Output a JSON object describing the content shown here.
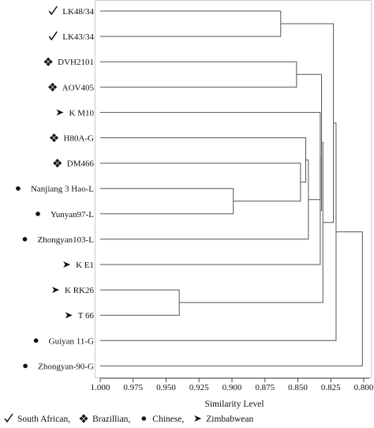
{
  "chart_data": {
    "type": "dendrogram",
    "xlabel": "Similarity Level",
    "xlim": [
      1.0,
      0.8
    ],
    "x_direction": "reversed",
    "ticks": [
      "1.000",
      "0.975",
      "0.950",
      "0.925",
      "0.900",
      "0.875",
      "0.850",
      "0.825",
      "0.800"
    ],
    "leaves": [
      {
        "label": "LK48/34",
        "origin": "South African"
      },
      {
        "label": "LK43/34",
        "origin": "South African"
      },
      {
        "label": "DVH2101",
        "origin": "Brazillian"
      },
      {
        "label": "AOV405",
        "origin": "Brazillian"
      },
      {
        "label": "K M10",
        "origin": "Zimbabwean"
      },
      {
        "label": "H80A-G",
        "origin": "Brazillian"
      },
      {
        "label": "DM466",
        "origin": "Brazillian"
      },
      {
        "label": "Nanjiang 3 Hao-L",
        "origin": "Chinese"
      },
      {
        "label": "Yunyan97-L",
        "origin": "Chinese"
      },
      {
        "label": "Zhongyan103-L",
        "origin": "Chinese"
      },
      {
        "label": "K E1",
        "origin": "Zimbabwean"
      },
      {
        "label": "K RK26",
        "origin": "Zimbabwean"
      },
      {
        "label": "T 66",
        "origin": "Zimbabwean"
      },
      {
        "label": "Guiyan 11-G",
        "origin": "Chinese"
      },
      {
        "label": "Zhongyan-90-G",
        "origin": "Chinese"
      }
    ],
    "merges": [
      {
        "id": "m1",
        "a": "L0",
        "b": "L1",
        "similarity": 0.863
      },
      {
        "id": "m2",
        "a": "L2",
        "b": "L3",
        "similarity": 0.851
      },
      {
        "id": "m3",
        "a": "L7",
        "b": "L8",
        "similarity": 0.899
      },
      {
        "id": "m4",
        "a": "L6",
        "b": "m3",
        "similarity": 0.848
      },
      {
        "id": "m5",
        "a": "L5",
        "b": "m4",
        "similarity": 0.844
      },
      {
        "id": "m6",
        "a": "m5",
        "b": "L9",
        "similarity": 0.842
      },
      {
        "id": "m7",
        "a": "L4",
        "b": "m6",
        "similarity": 0.833
      },
      {
        "id": "m8",
        "a": "m7",
        "b": "L10",
        "similarity": 0.833
      },
      {
        "id": "m9",
        "a": "m2",
        "b": "m8",
        "similarity": 0.832
      },
      {
        "id": "m10",
        "a": "L11",
        "b": "L12",
        "similarity": 0.94
      },
      {
        "id": "m11",
        "a": "m9",
        "b": "m10",
        "similarity": 0.831
      },
      {
        "id": "m12",
        "a": "m1",
        "b": "m11",
        "similarity": 0.823
      },
      {
        "id": "m13",
        "a": "m12",
        "b": "L13",
        "similarity": 0.821
      },
      {
        "id": "m14",
        "a": "m13",
        "b": "L14",
        "similarity": 0.801
      }
    ],
    "legend": {
      "placement": "bottom",
      "items": [
        {
          "symbol": "check",
          "label": "South African,"
        },
        {
          "symbol": "diamond-dots",
          "label": "Brazillian,"
        },
        {
          "symbol": "dot",
          "label": "Chinese,"
        },
        {
          "symbol": "arrowhead",
          "label": "Zimbabwean"
        }
      ]
    }
  }
}
